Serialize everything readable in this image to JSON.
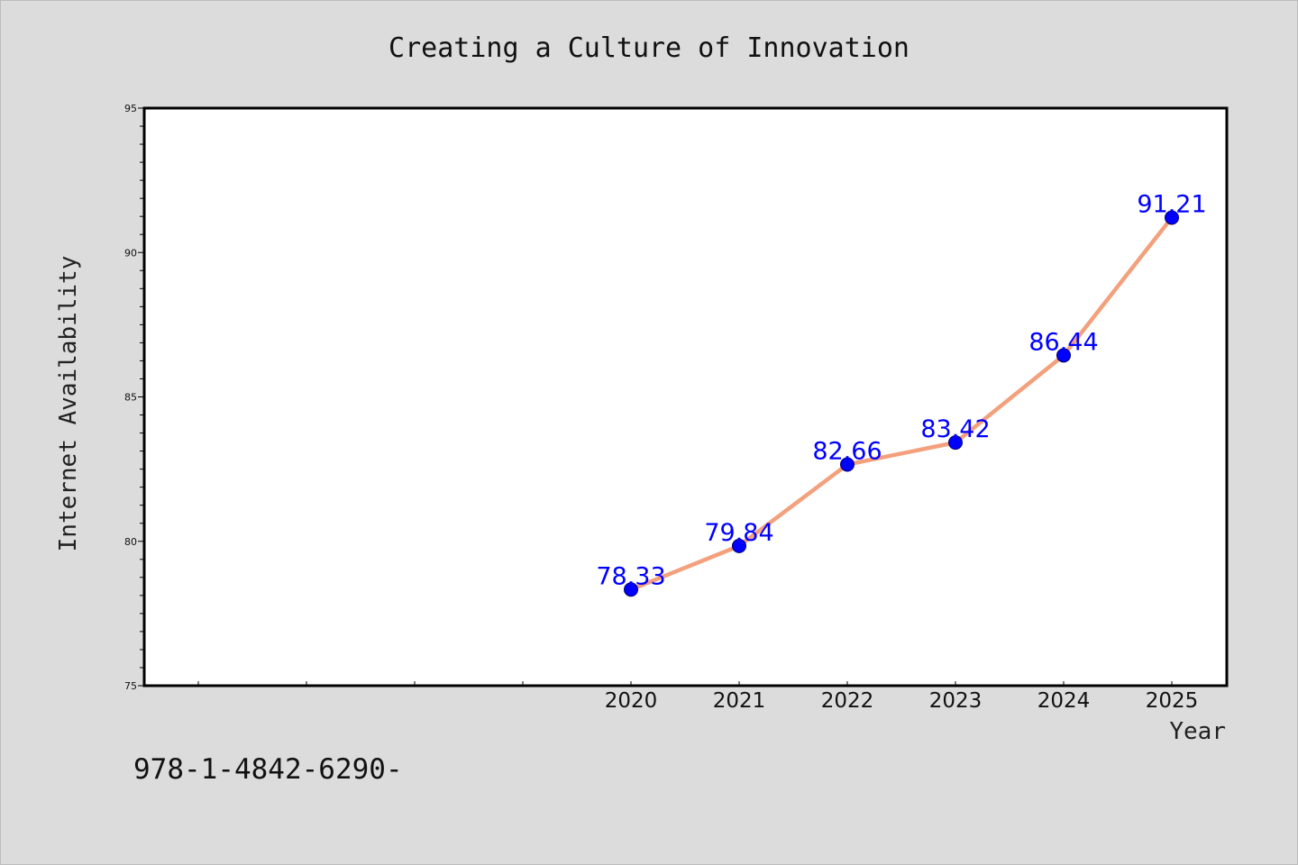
{
  "chart_data": {
    "type": "line",
    "title": "Creating a Culture of Innovation",
    "xlabel": "Year",
    "ylabel": "Internet Availability",
    "ylim": [
      75,
      95
    ],
    "ytick_labels": [
      "75",
      "80",
      "85",
      "90",
      "95"
    ],
    "categories": [
      "2020",
      "2021",
      "2022",
      "2023",
      "2024",
      "2025"
    ],
    "values": [
      78.33,
      79.84,
      82.66,
      83.42,
      86.44,
      91.21
    ],
    "data_labels": [
      "78.33",
      "79.84",
      "82.66",
      "83.42",
      "86.44",
      "91.21"
    ],
    "grid": false,
    "legend": "none",
    "line_color": "#f4a07c",
    "marker_color": "#0000ff",
    "label_color": "#0000ff"
  },
  "footer": {
    "isbn_text": "978-1-4842-6290-"
  }
}
